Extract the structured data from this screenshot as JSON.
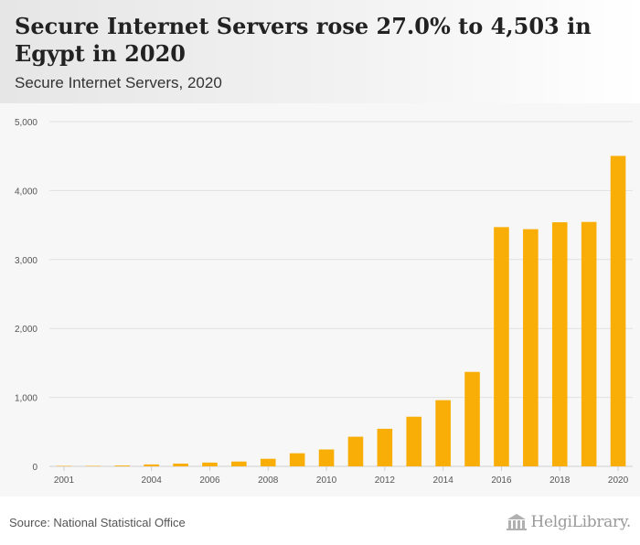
{
  "header": {
    "title": "Secure Internet Servers rose 27.0% to 4,503 in Egypt in 2020",
    "subtitle": "Secure Internet Servers, 2020"
  },
  "footer": {
    "source": "Source: National Statistical Office",
    "logo_text": "HelgiLibrary."
  },
  "colors": {
    "bar": "#f9ae07",
    "grid": "#e0e0e0",
    "axis_text": "#555555"
  },
  "chart_data": {
    "type": "bar",
    "title": "Secure Internet Servers rose 27.0% to 4,503 in Egypt in 2020",
    "subtitle": "Secure Internet Servers, 2020",
    "xlabel": "",
    "ylabel": "",
    "ylim": [
      0,
      5000
    ],
    "yticks": [
      0,
      1000,
      2000,
      3000,
      4000,
      5000
    ],
    "ytick_labels": [
      "0",
      "1,000",
      "2,000",
      "3,000",
      "4,000",
      "5,000"
    ],
    "categories": [
      "2001",
      "2002",
      "2003",
      "2004",
      "2005",
      "2006",
      "2007",
      "2008",
      "2009",
      "2010",
      "2011",
      "2012",
      "2013",
      "2014",
      "2015",
      "2016",
      "2017",
      "2018",
      "2019",
      "2020"
    ],
    "xtick_labels": [
      "2001",
      "2004",
      "2006",
      "2008",
      "2010",
      "2012",
      "2014",
      "2016",
      "2018",
      "2020"
    ],
    "values": [
      2,
      4,
      12,
      28,
      40,
      55,
      70,
      110,
      190,
      245,
      430,
      545,
      720,
      960,
      1370,
      3470,
      3440,
      3540,
      3545,
      4503
    ],
    "grid": true,
    "legend": "none"
  }
}
